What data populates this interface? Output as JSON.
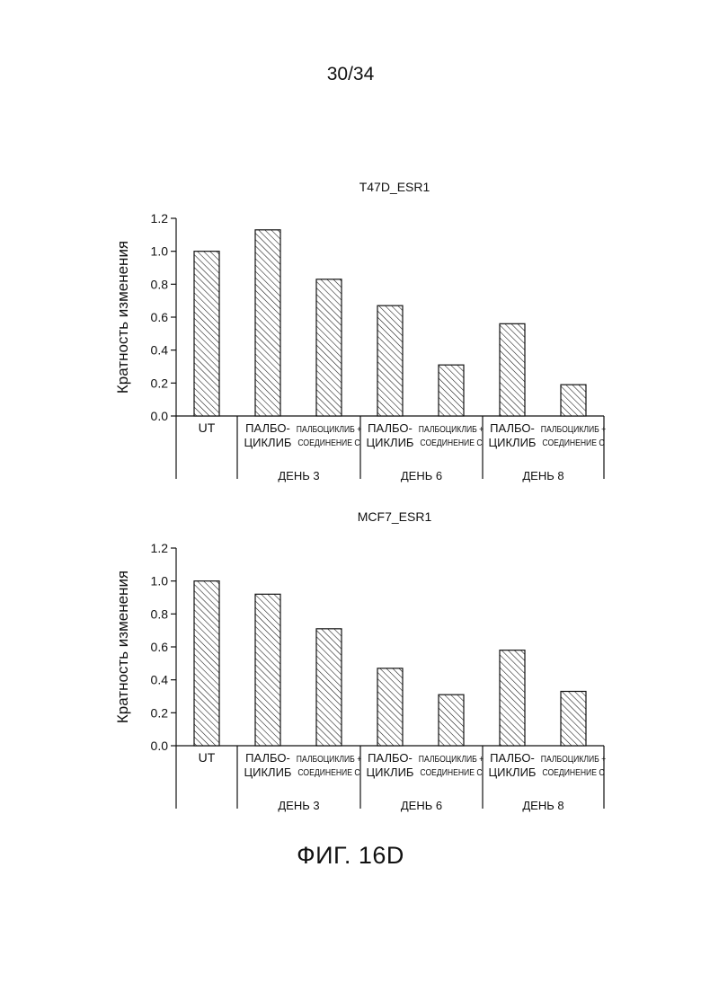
{
  "page": {
    "number": "30/34"
  },
  "figure": {
    "caption": "ФИГ. 16D"
  },
  "colors": {
    "ink": "#111111",
    "background": "#ffffff"
  },
  "chart_data": [
    {
      "type": "bar",
      "title": "T47D_ESR1",
      "ylabel": "Кратность изменения",
      "xlabel": "",
      "ylim": [
        0,
        1.2
      ],
      "yticks": [
        "0.0",
        "0.2",
        "0.4",
        "0.6",
        "0.8",
        "1.0",
        "1.2"
      ],
      "bar_fill": "diagonal hatch",
      "grid": false,
      "legend": "none",
      "categories": [
        [
          "UT"
        ],
        [
          "ПАЛБО-",
          "ЦИКЛИБ"
        ],
        [
          "ПАЛБОЦИКЛИБ +",
          "СОЕДИНЕНИЕ С"
        ],
        [
          "ПАЛБО-",
          "ЦИКЛИБ"
        ],
        [
          "ПАЛБОЦИКЛИБ +",
          "СОЕДИНЕНИЕ С"
        ],
        [
          "ПАЛБО-",
          "ЦИКЛИБ"
        ],
        [
          "ПАЛБОЦИКЛИБ +",
          "СОЕДИНЕНИЕ С"
        ]
      ],
      "groups": [
        "ДЕНЬ 3",
        "ДЕНЬ 6",
        "ДЕНЬ 8"
      ],
      "values": [
        1.0,
        1.13,
        0.83,
        0.67,
        0.31,
        0.56,
        0.19
      ]
    },
    {
      "type": "bar",
      "title": "MCF7_ESR1",
      "ylabel": "Кратность изменения",
      "xlabel": "",
      "ylim": [
        0,
        1.2
      ],
      "yticks": [
        "0.0",
        "0.2",
        "0.4",
        "0.6",
        "0.8",
        "1.0",
        "1.2"
      ],
      "bar_fill": "diagonal hatch",
      "grid": false,
      "legend": "none",
      "categories": [
        [
          "UT"
        ],
        [
          "ПАЛБО-",
          "ЦИКЛИБ"
        ],
        [
          "ПАЛБОЦИКЛИБ +",
          "СОЕДИНЕНИЕ С"
        ],
        [
          "ПАЛБО-",
          "ЦИКЛИБ"
        ],
        [
          "ПАЛБОЦИКЛИБ +",
          "СОЕДИНЕНИЕ С"
        ],
        [
          "ПАЛБО-",
          "ЦИКЛИБ"
        ],
        [
          "ПАЛБОЦИКЛИБ +",
          "СОЕДИНЕНИЕ С"
        ]
      ],
      "groups": [
        "ДЕНЬ 3",
        "ДЕНЬ 6",
        "ДЕНЬ 8"
      ],
      "values": [
        1.0,
        0.92,
        0.71,
        0.47,
        0.31,
        0.58,
        0.33
      ]
    }
  ]
}
